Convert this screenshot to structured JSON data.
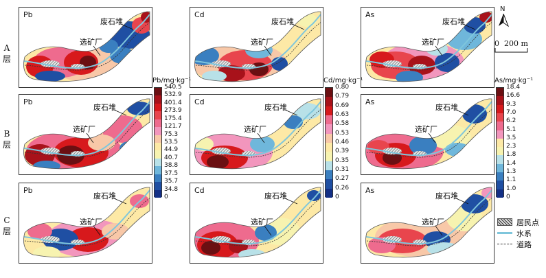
{
  "rows": [
    "A\n层",
    "B\n层",
    "C\n层"
  ],
  "panels": [
    {
      "id": "pb-a",
      "element": "Pb",
      "row": "A"
    },
    {
      "id": "cd-a",
      "element": "Cd",
      "row": "A"
    },
    {
      "id": "as-a",
      "element": "As",
      "row": "A"
    },
    {
      "id": "pb-b",
      "element": "Pb",
      "row": "B"
    },
    {
      "id": "cd-b",
      "element": "Cd",
      "row": "B"
    },
    {
      "id": "as-b",
      "element": "As",
      "row": "B"
    },
    {
      "id": "pb-c",
      "element": "Pb",
      "row": "C"
    },
    {
      "id": "cd-c",
      "element": "Cd",
      "row": "C"
    },
    {
      "id": "as-c",
      "element": "As",
      "row": "C"
    }
  ],
  "sites": {
    "waste_pile": "废石堆",
    "mill": "选矿厂"
  },
  "colorbars": {
    "pb": {
      "title": "Pb/mg·kg⁻¹",
      "ticks": [
        "540.5",
        "532.9",
        "401.4",
        "273.9",
        "175.4",
        "121.7",
        "75.3",
        "53.5",
        "44.9",
        "40.7",
        "38.8",
        "37.5",
        "35.7",
        "34.8",
        "0"
      ]
    },
    "cd": {
      "title": "Cd/mg·kg⁻¹",
      "ticks": [
        "0.80",
        "0.79",
        "0.69",
        "0.63",
        "0.58",
        "0.53",
        "0.46",
        "0.39",
        "0.35",
        "0.31",
        "0.27",
        "0.26",
        "0"
      ]
    },
    "as": {
      "title": "As/mg·kg⁻¹",
      "ticks": [
        "18.4",
        "16.6",
        "9.3",
        "7.0",
        "6.2",
        "5.1",
        "3.5",
        "2.3",
        "1.8",
        "1.4",
        "1.3",
        "1.1",
        "1.0",
        "0"
      ]
    }
  },
  "palette": [
    "#6b0f12",
    "#a8121a",
    "#d7191c",
    "#e8454d",
    "#ee6b8e",
    "#f296bd",
    "#f8c8a8",
    "#fde9a6",
    "#f7f3b0",
    "#b8e1e8",
    "#6fb7db",
    "#3a7fc0",
    "#1f4fa3",
    "#132f86"
  ],
  "north": {
    "label": "N"
  },
  "scale": {
    "label": "0  200 m"
  },
  "legend": [
    {
      "symbol": "hatch",
      "label": "居民点"
    },
    {
      "symbol": "water",
      "label": "水系"
    },
    {
      "symbol": "road",
      "label": "道路"
    }
  ]
}
